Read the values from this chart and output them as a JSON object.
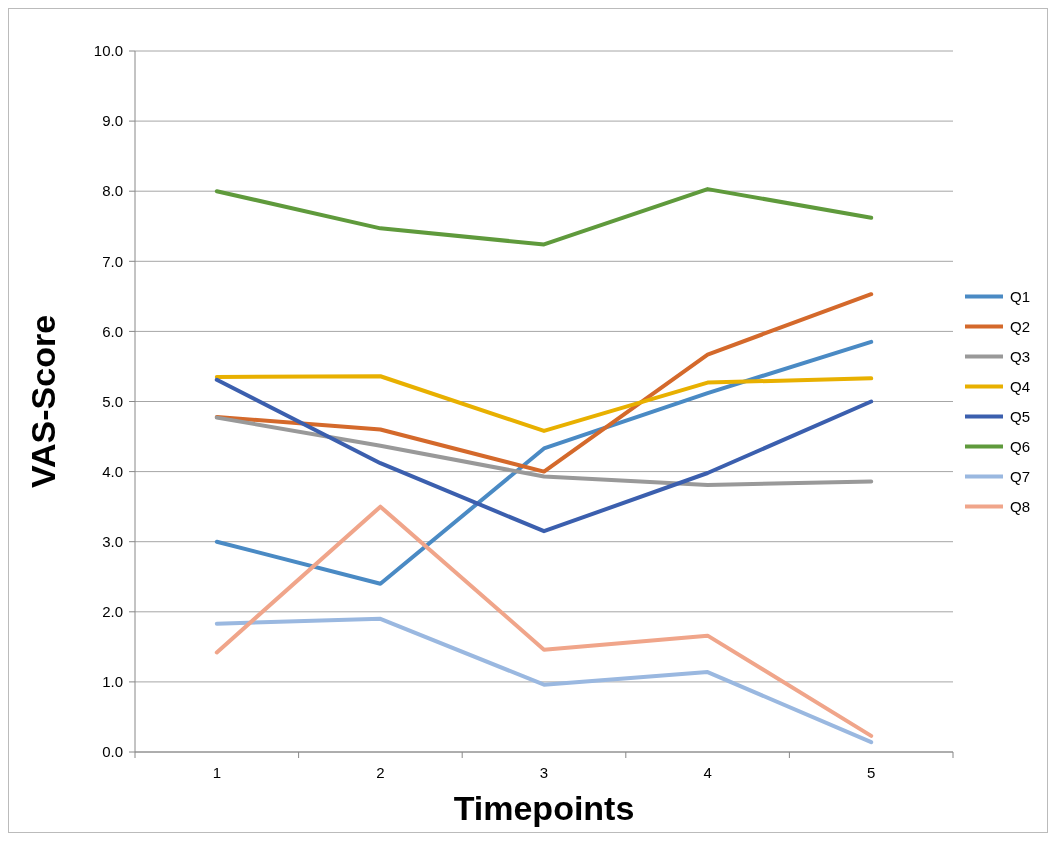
{
  "chart_data": {
    "type": "line",
    "xlabel": "Timepoints",
    "ylabel": "VAS-Score",
    "categories": [
      "1",
      "2",
      "3",
      "4",
      "5"
    ],
    "series": [
      {
        "name": "Q1",
        "color": "#4a8ac4",
        "values": [
          3.0,
          2.4,
          4.33,
          5.12,
          5.85
        ]
      },
      {
        "name": "Q2",
        "color": "#d4692b",
        "values": [
          4.78,
          4.6,
          4.0,
          5.67,
          6.53
        ]
      },
      {
        "name": "Q3",
        "color": "#999999",
        "values": [
          4.77,
          4.37,
          3.93,
          3.81,
          3.86
        ]
      },
      {
        "name": "Q4",
        "color": "#e8b000",
        "values": [
          5.35,
          5.36,
          4.58,
          5.27,
          5.33
        ]
      },
      {
        "name": "Q5",
        "color": "#3b5fae",
        "values": [
          5.31,
          4.12,
          3.15,
          3.98,
          5.0
        ]
      },
      {
        "name": "Q6",
        "color": "#5f9a3c",
        "values": [
          8.0,
          7.47,
          7.24,
          8.03,
          7.62
        ]
      },
      {
        "name": "Q7",
        "color": "#9ab8e0",
        "values": [
          1.83,
          1.9,
          0.96,
          1.14,
          0.14
        ]
      },
      {
        "name": "Q8",
        "color": "#f0a58a",
        "values": [
          1.42,
          3.5,
          1.46,
          1.66,
          0.23
        ]
      }
    ],
    "ylim": [
      0,
      10
    ],
    "yticks": [
      {
        "value": 0,
        "label": "0.0"
      },
      {
        "value": 1,
        "label": "1.0"
      },
      {
        "value": 2,
        "label": "2.0"
      },
      {
        "value": 3,
        "label": "3.0"
      },
      {
        "value": 4,
        "label": "4.0"
      },
      {
        "value": 5,
        "label": "5.0"
      },
      {
        "value": 6,
        "label": "6.0"
      },
      {
        "value": 7,
        "label": "7.0"
      },
      {
        "value": 8,
        "label": "8.0"
      },
      {
        "value": 9,
        "label": "9.0"
      },
      {
        "value": 10,
        "label": "10.0"
      }
    ],
    "grid": "y",
    "legend": "right",
    "marker": "none",
    "line_style": "solid"
  }
}
